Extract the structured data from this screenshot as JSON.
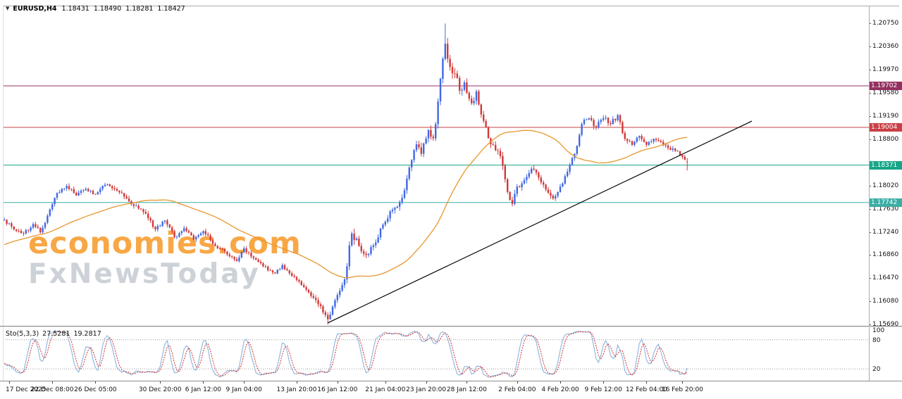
{
  "header": {
    "dropdown_icon": "▼",
    "symbol": "EURUSD,H4",
    "open": "1.18431",
    "high": "1.18490",
    "low": "1.18281",
    "close": "1.18427"
  },
  "watermark": {
    "line1": "economies.com",
    "line2": "FxNewsToday"
  },
  "chart_data": {
    "type": "candlestick",
    "symbol": "EURUSD",
    "timeframe": "H4",
    "price_range": {
      "top": 1.2105,
      "bottom": 1.1567
    },
    "price_axis": {
      "labels": [
        "1.20750",
        "1.20360",
        "1.19970",
        "1.19580",
        "1.19190",
        "1.18800",
        "1.18020",
        "1.17630",
        "1.17240",
        "1.16860",
        "1.16470",
        "1.16080",
        "1.15690"
      ]
    },
    "hlines": [
      {
        "price": 1.19702,
        "label": "1.19702",
        "color": "#93305F"
      },
      {
        "price": 1.19004,
        "label": "1.19004",
        "color": "#C94046"
      },
      {
        "price": 1.18371,
        "label": "1.18371",
        "color": "#17A589"
      },
      {
        "price": 1.17742,
        "label": "1.17742",
        "color": "#3AADA5"
      }
    ],
    "candle_count": 286,
    "up_color": "#4169E1",
    "down_color": "#D03A3A",
    "last_candle": {
      "open": 1.18431,
      "high": 1.1849,
      "low": 1.18281,
      "close": 1.18427
    },
    "extremes": {
      "high": {
        "index": 184,
        "price": 1.2075
      },
      "low": {
        "index": 135,
        "price": 1.1569
      }
    },
    "close_anchors": [
      [
        0,
        1.1745
      ],
      [
        4,
        1.1729
      ],
      [
        8,
        1.1722
      ],
      [
        12,
        1.1738
      ],
      [
        15,
        1.1724
      ],
      [
        18,
        1.1752
      ],
      [
        22,
        1.179
      ],
      [
        26,
        1.1802
      ],
      [
        30,
        1.1786
      ],
      [
        34,
        1.1797
      ],
      [
        38,
        1.1788
      ],
      [
        42,
        1.1804
      ],
      [
        47,
        1.1794
      ],
      [
        51,
        1.1781
      ],
      [
        56,
        1.1764
      ],
      [
        60,
        1.1748
      ],
      [
        63,
        1.1729
      ],
      [
        67,
        1.1744
      ],
      [
        71,
        1.1716
      ],
      [
        75,
        1.1731
      ],
      [
        79,
        1.1712
      ],
      [
        83,
        1.1726
      ],
      [
        88,
        1.1701
      ],
      [
        92,
        1.1692
      ],
      [
        97,
        1.1676
      ],
      [
        100,
        1.1697
      ],
      [
        104,
        1.1681
      ],
      [
        108,
        1.1667
      ],
      [
        113,
        1.1655
      ],
      [
        116,
        1.1669
      ],
      [
        120,
        1.1651
      ],
      [
        125,
        1.1632
      ],
      [
        129,
        1.1614
      ],
      [
        132,
        1.16
      ],
      [
        135,
        1.1578
      ],
      [
        138,
        1.161
      ],
      [
        142,
        1.1645
      ],
      [
        145,
        1.1722
      ],
      [
        148,
        1.1701
      ],
      [
        151,
        1.1686
      ],
      [
        155,
        1.1707
      ],
      [
        158,
        1.1737
      ],
      [
        162,
        1.1762
      ],
      [
        166,
        1.1782
      ],
      [
        169,
        1.1833
      ],
      [
        172,
        1.1872
      ],
      [
        174,
        1.1856
      ],
      [
        177,
        1.1896
      ],
      [
        179,
        1.1882
      ],
      [
        181,
        1.1944
      ],
      [
        184,
        1.2041
      ],
      [
        186,
        1.2002
      ],
      [
        188,
        1.1991
      ],
      [
        190,
        1.1962
      ],
      [
        192,
        1.1976
      ],
      [
        195,
        1.1941
      ],
      [
        197,
        1.1961
      ],
      [
        199,
        1.1922
      ],
      [
        201,
        1.1901
      ],
      [
        203,
        1.1872
      ],
      [
        206,
        1.1861
      ],
      [
        208,
        1.1836
      ],
      [
        210,
        1.1792
      ],
      [
        212,
        1.1772
      ],
      [
        214,
        1.1801
      ],
      [
        217,
        1.1812
      ],
      [
        220,
        1.1831
      ],
      [
        223,
        1.1816
      ],
      [
        226,
        1.1796
      ],
      [
        229,
        1.1781
      ],
      [
        232,
        1.1801
      ],
      [
        235,
        1.1826
      ],
      [
        238,
        1.1856
      ],
      [
        241,
        1.1906
      ],
      [
        244,
        1.1916
      ],
      [
        247,
        1.1901
      ],
      [
        250,
        1.1916
      ],
      [
        253,
        1.1906
      ],
      [
        256,
        1.1921
      ],
      [
        259,
        1.1881
      ],
      [
        262,
        1.1871
      ],
      [
        265,
        1.1886
      ],
      [
        268,
        1.1871
      ],
      [
        271,
        1.1881
      ],
      [
        274,
        1.1876
      ],
      [
        277,
        1.1866
      ],
      [
        280,
        1.1861
      ],
      [
        283,
        1.1851
      ],
      [
        285,
        1.18427
      ]
    ],
    "volatility_anchors": [
      [
        0,
        0.0006
      ],
      [
        60,
        0.0007
      ],
      [
        120,
        0.0005
      ],
      [
        133,
        0.0008
      ],
      [
        141,
        0.0007
      ],
      [
        145,
        0.0014
      ],
      [
        150,
        0.0008
      ],
      [
        160,
        0.0009
      ],
      [
        170,
        0.0012
      ],
      [
        184,
        0.0016
      ],
      [
        195,
        0.0013
      ],
      [
        205,
        0.0012
      ],
      [
        215,
        0.001
      ],
      [
        225,
        0.0008
      ],
      [
        240,
        0.0009
      ],
      [
        256,
        0.0008
      ],
      [
        285,
        0.0006
      ]
    ],
    "ma": {
      "period": 50,
      "preseed": 1.166,
      "color": "#E8962E"
    },
    "trendline": {
      "color": "#000000",
      "from": {
        "index": 135,
        "price": 1.1572
      },
      "to": {
        "index": 312,
        "price": 1.1911
      }
    },
    "indicator": {
      "name": "Stochastic",
      "title": "Sto(5,3,3)",
      "value1": "27.5281",
      "value2": "19.2817",
      "k_color": "#8CB4DC",
      "d_color": "#CC2E2E",
      "levels": [
        100,
        80,
        20
      ],
      "level_lines": [
        80,
        20
      ]
    },
    "time_axis": {
      "labels": [
        {
          "text": "17 Dec 2025",
          "index": 2,
          "align": "left"
        },
        {
          "text": "22 Dec 08:00",
          "index": 20
        },
        {
          "text": "26 Dec 05:00",
          "index": 38
        },
        {
          "text": "30 Dec 20:00",
          "index": 65
        },
        {
          "text": "6 Jan 12:00",
          "index": 83
        },
        {
          "text": "9 Jan 04:00",
          "index": 100
        },
        {
          "text": "13 Jan 20:00",
          "index": 122
        },
        {
          "text": "16 Jan 12:00",
          "index": 139
        },
        {
          "text": "21 Jan 04:00",
          "index": 159
        },
        {
          "text": "23 Jan 20:00",
          "index": 176
        },
        {
          "text": "28 Jan 12:00",
          "index": 193
        },
        {
          "text": "2 Feb 04:00",
          "index": 214
        },
        {
          "text": "4 Feb 20:00",
          "index": 232
        },
        {
          "text": "9 Feb 12:00",
          "index": 250
        },
        {
          "text": "12 Feb 04:00",
          "index": 268
        },
        {
          "text": "16 Feb 20:00",
          "index": 283
        }
      ]
    }
  }
}
